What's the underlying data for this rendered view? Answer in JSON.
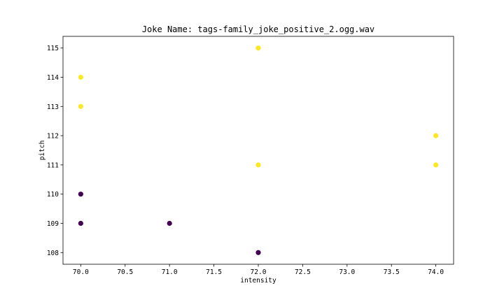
{
  "chart_data": {
    "type": "scatter",
    "title": "Joke Name: tags-family_joke_positive_2.ogg.wav",
    "xlabel": "intensity",
    "ylabel": "pitch",
    "xlim": [
      69.8,
      74.2
    ],
    "ylim": [
      107.6,
      115.4
    ],
    "xticks": [
      70.0,
      70.5,
      71.0,
      71.5,
      72.0,
      72.5,
      73.0,
      73.5,
      74.0
    ],
    "yticks": [
      108,
      109,
      110,
      111,
      112,
      113,
      114,
      115
    ],
    "grid": false,
    "colors": {
      "class_a": "#440154",
      "class_b": "#fde725"
    },
    "points": [
      {
        "x": 72.0,
        "y": 115,
        "c": "class_b"
      },
      {
        "x": 70.0,
        "y": 114,
        "c": "class_b"
      },
      {
        "x": 70.0,
        "y": 113,
        "c": "class_b"
      },
      {
        "x": 74.0,
        "y": 112,
        "c": "class_b"
      },
      {
        "x": 72.0,
        "y": 111,
        "c": "class_b"
      },
      {
        "x": 74.0,
        "y": 111,
        "c": "class_b"
      },
      {
        "x": 70.0,
        "y": 110,
        "c": "class_a"
      },
      {
        "x": 70.0,
        "y": 109,
        "c": "class_a"
      },
      {
        "x": 71.0,
        "y": 109,
        "c": "class_a"
      },
      {
        "x": 72.0,
        "y": 108,
        "c": "class_a"
      }
    ]
  }
}
